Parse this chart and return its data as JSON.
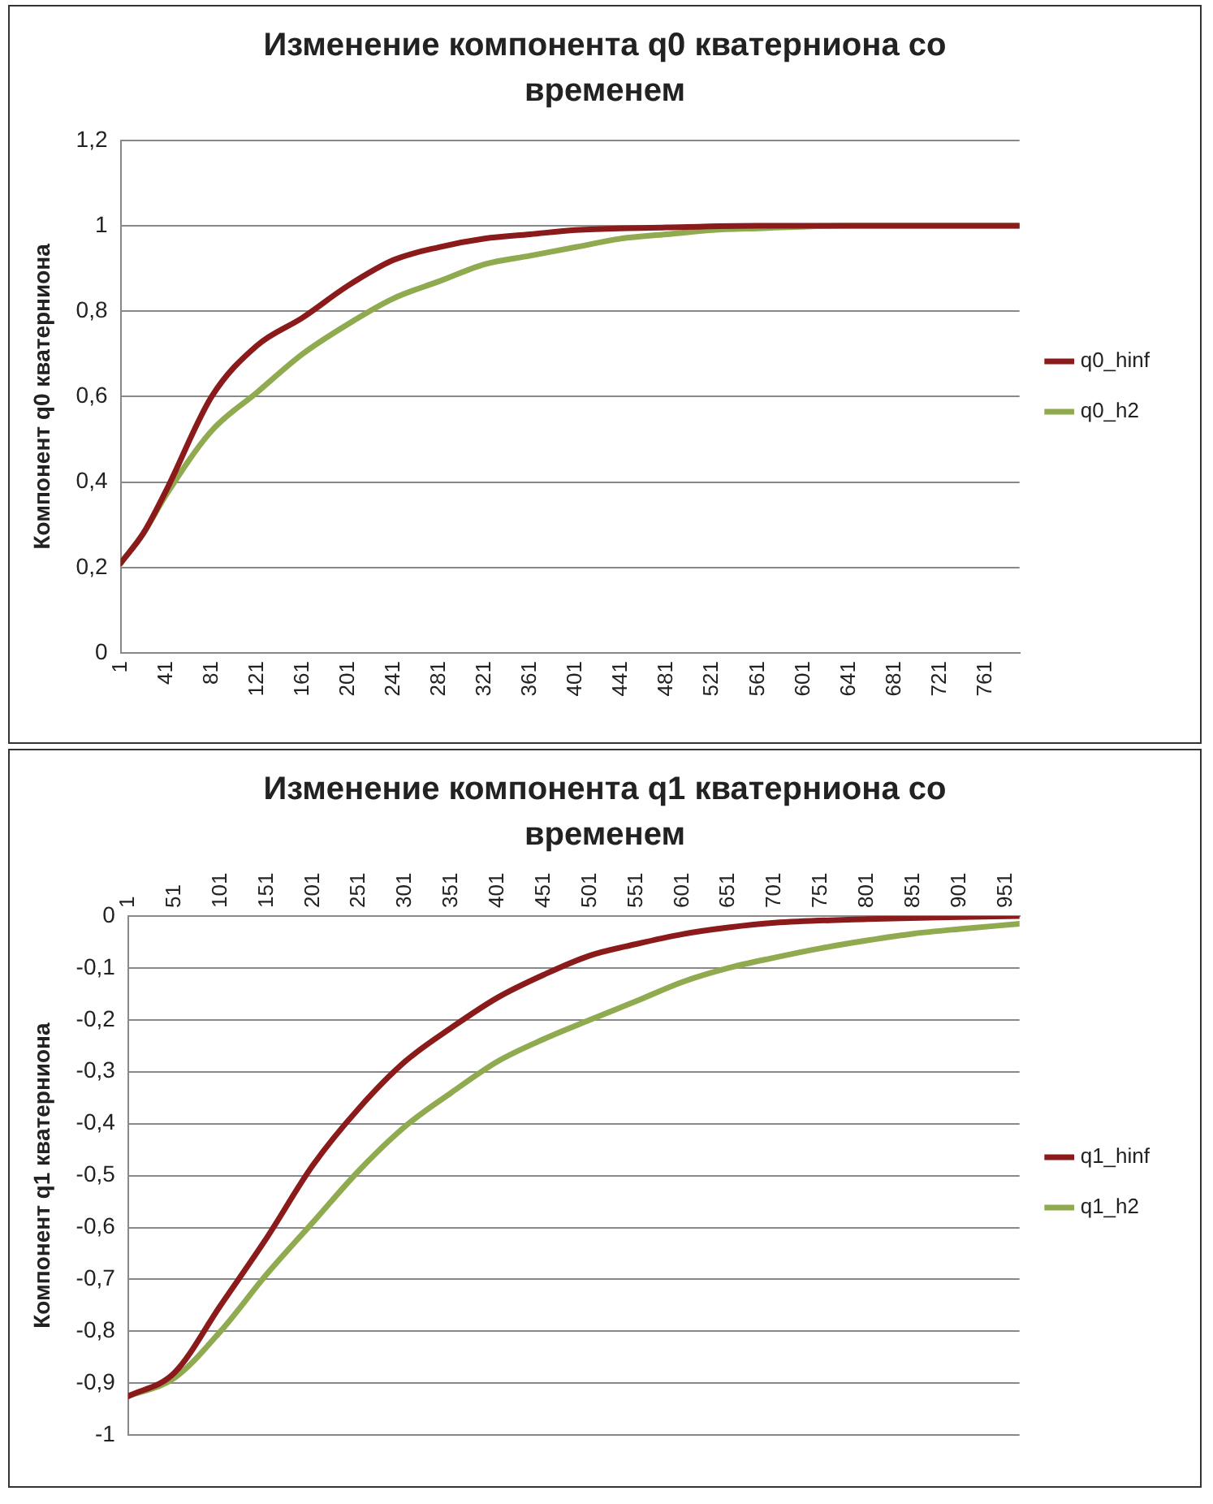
{
  "chart_data": [
    {
      "type": "line",
      "title": "Изменение компонента q0 кватерниона со временем",
      "ylabel": "Компонент q0 кватерниона",
      "xlim": [
        1,
        791
      ],
      "xticks": [
        1,
        41,
        81,
        121,
        161,
        201,
        241,
        281,
        321,
        361,
        401,
        441,
        481,
        521,
        561,
        601,
        641,
        681,
        721,
        761
      ],
      "ylim": [
        0,
        1.2
      ],
      "yticks": [
        {
          "value": 0,
          "label": "0"
        },
        {
          "value": 0.2,
          "label": "0,2"
        },
        {
          "value": 0.4,
          "label": "0,4"
        },
        {
          "value": 0.6,
          "label": "0,6"
        },
        {
          "value": 0.8,
          "label": "0,8"
        },
        {
          "value": 1,
          "label": "1"
        },
        {
          "value": 1.2,
          "label": "1,2"
        }
      ],
      "grid": "y",
      "legend": "right",
      "marker": "none",
      "line_style": "solid",
      "series": [
        {
          "name": "q0_hinf",
          "color": "#8b1a1a",
          "x": [
            1,
            21,
            41,
            81,
            121,
            161,
            201,
            241,
            281,
            321,
            361,
            401,
            481,
            561,
            791
          ],
          "values": [
            0.21,
            0.28,
            0.38,
            0.6,
            0.72,
            0.785,
            0.86,
            0.92,
            0.95,
            0.97,
            0.98,
            0.99,
            0.996,
            1,
            1
          ]
        },
        {
          "name": "q0_h2",
          "color": "#8faa4f",
          "x": [
            1,
            21,
            41,
            81,
            121,
            161,
            201,
            241,
            281,
            321,
            361,
            401,
            441,
            481,
            521,
            561,
            641,
            791
          ],
          "values": [
            0.21,
            0.28,
            0.37,
            0.52,
            0.61,
            0.7,
            0.77,
            0.83,
            0.87,
            0.91,
            0.93,
            0.95,
            0.97,
            0.98,
            0.99,
            0.994,
            1,
            1
          ]
        }
      ]
    },
    {
      "type": "line",
      "title": "Изменение компонента q1 кватерниона со временем",
      "ylabel": "Компонент q1 кватерниона",
      "xlim": [
        1,
        966
      ],
      "xticks": [
        1,
        51,
        101,
        151,
        201,
        251,
        301,
        351,
        401,
        451,
        501,
        551,
        601,
        651,
        701,
        751,
        801,
        851,
        901,
        951
      ],
      "ylim": [
        -1,
        0
      ],
      "yticks": [
        {
          "value": -1,
          "label": "-1"
        },
        {
          "value": -0.9,
          "label": "-0,9"
        },
        {
          "value": -0.8,
          "label": "-0,8"
        },
        {
          "value": -0.7,
          "label": "-0,7"
        },
        {
          "value": -0.6,
          "label": "-0,6"
        },
        {
          "value": -0.5,
          "label": "-0,5"
        },
        {
          "value": -0.4,
          "label": "-0,4"
        },
        {
          "value": -0.3,
          "label": "-0,3"
        },
        {
          "value": -0.2,
          "label": "-0,2"
        },
        {
          "value": -0.1,
          "label": "-0,1"
        },
        {
          "value": 0,
          "label": "0"
        }
      ],
      "grid": "y",
      "legend": "right",
      "marker": "none",
      "line_style": "solid",
      "series": [
        {
          "name": "q1_hinf",
          "color": "#8b1a1a",
          "x": [
            1,
            51,
            101,
            151,
            201,
            251,
            301,
            351,
            401,
            451,
            501,
            551,
            601,
            651,
            701,
            801,
            901,
            966
          ],
          "values": [
            -0.925,
            -0.88,
            -0.75,
            -0.62,
            -0.48,
            -0.37,
            -0.28,
            -0.215,
            -0.157,
            -0.113,
            -0.076,
            -0.054,
            -0.035,
            -0.022,
            -0.013,
            -0.006,
            -0.002,
            0
          ]
        },
        {
          "name": "q1_h2",
          "color": "#8faa4f",
          "x": [
            1,
            51,
            101,
            151,
            201,
            251,
            301,
            351,
            401,
            451,
            501,
            551,
            601,
            651,
            701,
            751,
            801,
            851,
            901,
            966
          ],
          "values": [
            -0.925,
            -0.89,
            -0.8,
            -0.69,
            -0.59,
            -0.49,
            -0.405,
            -0.34,
            -0.28,
            -0.237,
            -0.2,
            -0.164,
            -0.127,
            -0.1,
            -0.08,
            -0.062,
            -0.047,
            -0.034,
            -0.025,
            -0.015
          ]
        }
      ]
    }
  ]
}
